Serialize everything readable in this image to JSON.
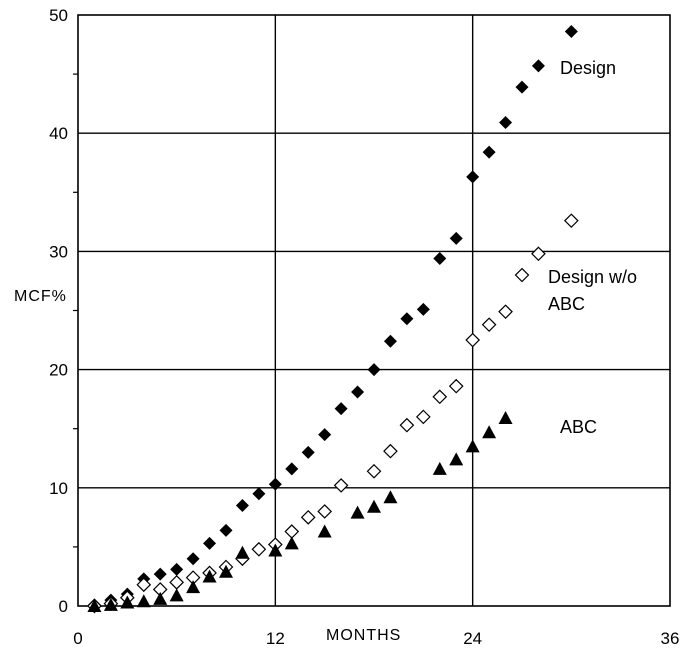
{
  "chart_data": {
    "type": "scatter",
    "title": "",
    "xlabel": "MONTHS",
    "ylabel": "MCF%",
    "xlim": [
      0,
      36
    ],
    "ylim": [
      0,
      50
    ],
    "xticks": [
      0,
      12,
      24,
      36
    ],
    "yticks": [
      0,
      10,
      20,
      30,
      40,
      50
    ],
    "xtick_labels": [
      "0",
      "12",
      "24",
      "36"
    ],
    "ytick_labels": [
      "0",
      "10",
      "20",
      "30",
      "40",
      "50"
    ],
    "grid": true,
    "legend": "none",
    "series": [
      {
        "name": "Design",
        "marker": "filled-diamond",
        "x": [
          1,
          2,
          3,
          4,
          5,
          6,
          7,
          8,
          9,
          10,
          11,
          12,
          13,
          14,
          15,
          16,
          17,
          18,
          19,
          20,
          21,
          22,
          23,
          24,
          25,
          26,
          27,
          28,
          30
        ],
        "y": [
          0.1,
          0.5,
          1.0,
          2.3,
          2.7,
          3.1,
          4.0,
          5.3,
          6.4,
          8.5,
          9.5,
          10.3,
          11.6,
          13.0,
          14.5,
          16.7,
          18.1,
          20.0,
          22.4,
          24.3,
          25.1,
          29.4,
          31.1,
          36.3,
          38.4,
          40.9,
          43.9,
          45.7,
          48.6
        ]
      },
      {
        "name": "Design w/o ABC",
        "marker": "open-diamond",
        "x": [
          1,
          2,
          3,
          4,
          5,
          6,
          7,
          8,
          9,
          10,
          11,
          12,
          13,
          14,
          15,
          16,
          18,
          19,
          20,
          21,
          22,
          23,
          24,
          25,
          26,
          27,
          28,
          30
        ],
        "y": [
          0.0,
          0.2,
          0.7,
          1.8,
          1.4,
          2.0,
          2.4,
          2.8,
          3.3,
          4.0,
          4.8,
          5.2,
          6.3,
          7.5,
          8.0,
          10.2,
          11.4,
          13.1,
          15.3,
          16.0,
          17.7,
          18.6,
          22.5,
          23.8,
          24.9,
          28.0,
          29.8,
          32.6
        ]
      },
      {
        "name": "ABC",
        "marker": "filled-triangle",
        "x": [
          1,
          2,
          3,
          4,
          5,
          6,
          7,
          8,
          9,
          10,
          12,
          13,
          15,
          17,
          18,
          19,
          22,
          23,
          24,
          25,
          26
        ],
        "y": [
          0.0,
          0.1,
          0.3,
          0.4,
          0.6,
          0.9,
          1.6,
          2.5,
          2.9,
          4.5,
          4.7,
          5.3,
          6.3,
          7.9,
          8.4,
          9.2,
          11.6,
          12.4,
          13.5,
          14.7,
          15.9
        ]
      }
    ],
    "annotations": {
      "design": "Design",
      "design_wo_line1": "Design w/o",
      "design_wo_line2": "ABC",
      "abc": "ABC"
    }
  }
}
